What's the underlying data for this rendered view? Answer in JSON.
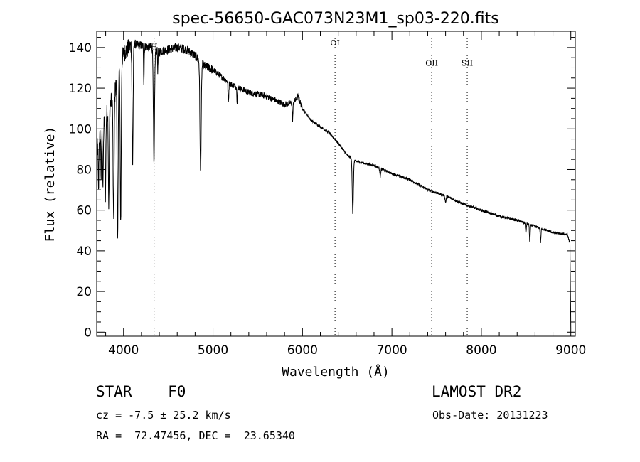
{
  "chart_data": {
    "type": "line",
    "title": "spec-56650-GAC073N23M1_sp03-220.fits",
    "xlabel": "Wavelength (Å)",
    "ylabel": "Flux (relative)",
    "xlim": [
      3700,
      9050
    ],
    "ylim": [
      -2,
      148
    ],
    "xticks": [
      4000,
      5000,
      6000,
      7000,
      8000,
      9000
    ],
    "yticks": [
      0,
      20,
      40,
      60,
      80,
      100,
      120,
      140
    ],
    "x_minor_step": 200,
    "y_minor_step": 5,
    "grid": false,
    "continuum": [
      [
        3700,
        90
      ],
      [
        3800,
        106
      ],
      [
        3900,
        118
      ],
      [
        3950,
        130
      ],
      [
        4000,
        137
      ],
      [
        4100,
        142
      ],
      [
        4200,
        141
      ],
      [
        4300,
        140
      ],
      [
        4400,
        138
      ],
      [
        4500,
        139
      ],
      [
        4600,
        140
      ],
      [
        4700,
        139
      ],
      [
        4800,
        136
      ],
      [
        4900,
        131
      ],
      [
        5000,
        129
      ],
      [
        5200,
        122
      ],
      [
        5400,
        118
      ],
      [
        5600,
        116
      ],
      [
        5800,
        112
      ],
      [
        5900,
        113
      ],
      [
        5950,
        116
      ],
      [
        6000,
        110
      ],
      [
        6100,
        104
      ],
      [
        6200,
        101
      ],
      [
        6300,
        98
      ],
      [
        6400,
        93
      ],
      [
        6500,
        87
      ],
      [
        6600,
        84
      ],
      [
        6700,
        83
      ],
      [
        6800,
        82
      ],
      [
        6900,
        80
      ],
      [
        7000,
        78
      ],
      [
        7200,
        75
      ],
      [
        7400,
        70
      ],
      [
        7600,
        67
      ],
      [
        7800,
        63
      ],
      [
        8000,
        60
      ],
      [
        8200,
        57
      ],
      [
        8400,
        55
      ],
      [
        8600,
        52
      ],
      [
        8800,
        49
      ],
      [
        8960,
        48
      ],
      [
        8990,
        44
      ],
      [
        9000,
        2
      ]
    ],
    "absorption_lines": [
      {
        "x": 3720,
        "depth": 25,
        "width": 5
      },
      {
        "x": 3750,
        "depth": 22,
        "width": 5
      },
      {
        "x": 3770,
        "depth": 30,
        "width": 6
      },
      {
        "x": 3798,
        "depth": 38,
        "width": 6
      },
      {
        "x": 3835,
        "depth": 48,
        "width": 7
      },
      {
        "x": 3889,
        "depth": 62,
        "width": 8
      },
      {
        "x": 3934,
        "depth": 83,
        "width": 8
      },
      {
        "x": 3968,
        "depth": 78,
        "width": 8
      },
      {
        "x": 4101,
        "depth": 60,
        "width": 8
      },
      {
        "x": 4227,
        "depth": 18,
        "width": 5
      },
      {
        "x": 4340,
        "depth": 58,
        "width": 9
      },
      {
        "x": 4383,
        "depth": 10,
        "width": 4
      },
      {
        "x": 4861,
        "depth": 54,
        "width": 10
      },
      {
        "x": 5172,
        "depth": 10,
        "width": 6
      },
      {
        "x": 5270,
        "depth": 7,
        "width": 5
      },
      {
        "x": 5890,
        "depth": 8,
        "width": 6
      },
      {
        "x": 6563,
        "depth": 27,
        "width": 9
      },
      {
        "x": 6870,
        "depth": 4,
        "width": 8
      },
      {
        "x": 7600,
        "depth": 3,
        "width": 8
      },
      {
        "x": 8498,
        "depth": 5,
        "width": 6
      },
      {
        "x": 8542,
        "depth": 9,
        "width": 6
      },
      {
        "x": 8662,
        "depth": 7,
        "width": 6
      }
    ],
    "line_markers": [
      {
        "x": 4341,
        "label": "H",
        "label_y": 139
      },
      {
        "x": 6364,
        "label": "OI",
        "label_y": 141
      },
      {
        "x": 7445,
        "label": "OII",
        "label_y": 131
      },
      {
        "x": 7842,
        "label": "SII",
        "label_y": 131
      }
    ]
  },
  "info": {
    "class": "STAR    F0",
    "survey": "LAMOST DR2",
    "cz": "cz = -7.5 ± 25.2 km/s",
    "obs_date": "Obs-Date: 20131223",
    "coords": "RA =  72.47456, DEC =  23.65340"
  }
}
